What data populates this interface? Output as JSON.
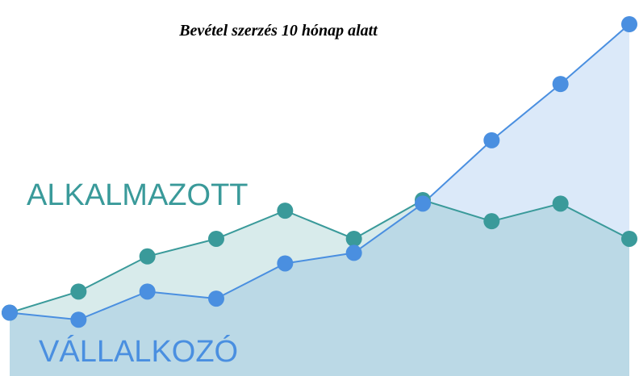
{
  "chart_data": {
    "type": "area",
    "title": "Bevétel szerzés 10 hónap alatt",
    "categories": [
      null,
      null,
      null,
      null,
      null,
      null,
      null,
      null,
      null,
      null
    ],
    "ylim": [
      0,
      100
    ],
    "series": [
      {
        "name": "ALKALMAZOTT",
        "color": "#3a9a9a",
        "values": [
          18,
          24,
          34,
          39,
          47,
          39,
          50,
          44,
          49,
          39
        ]
      },
      {
        "name": "VÁLLALKOZÓ",
        "color": "#4a8fe0",
        "values": [
          18,
          16,
          24,
          22,
          32,
          35,
          49,
          67,
          83,
          100
        ]
      }
    ]
  }
}
